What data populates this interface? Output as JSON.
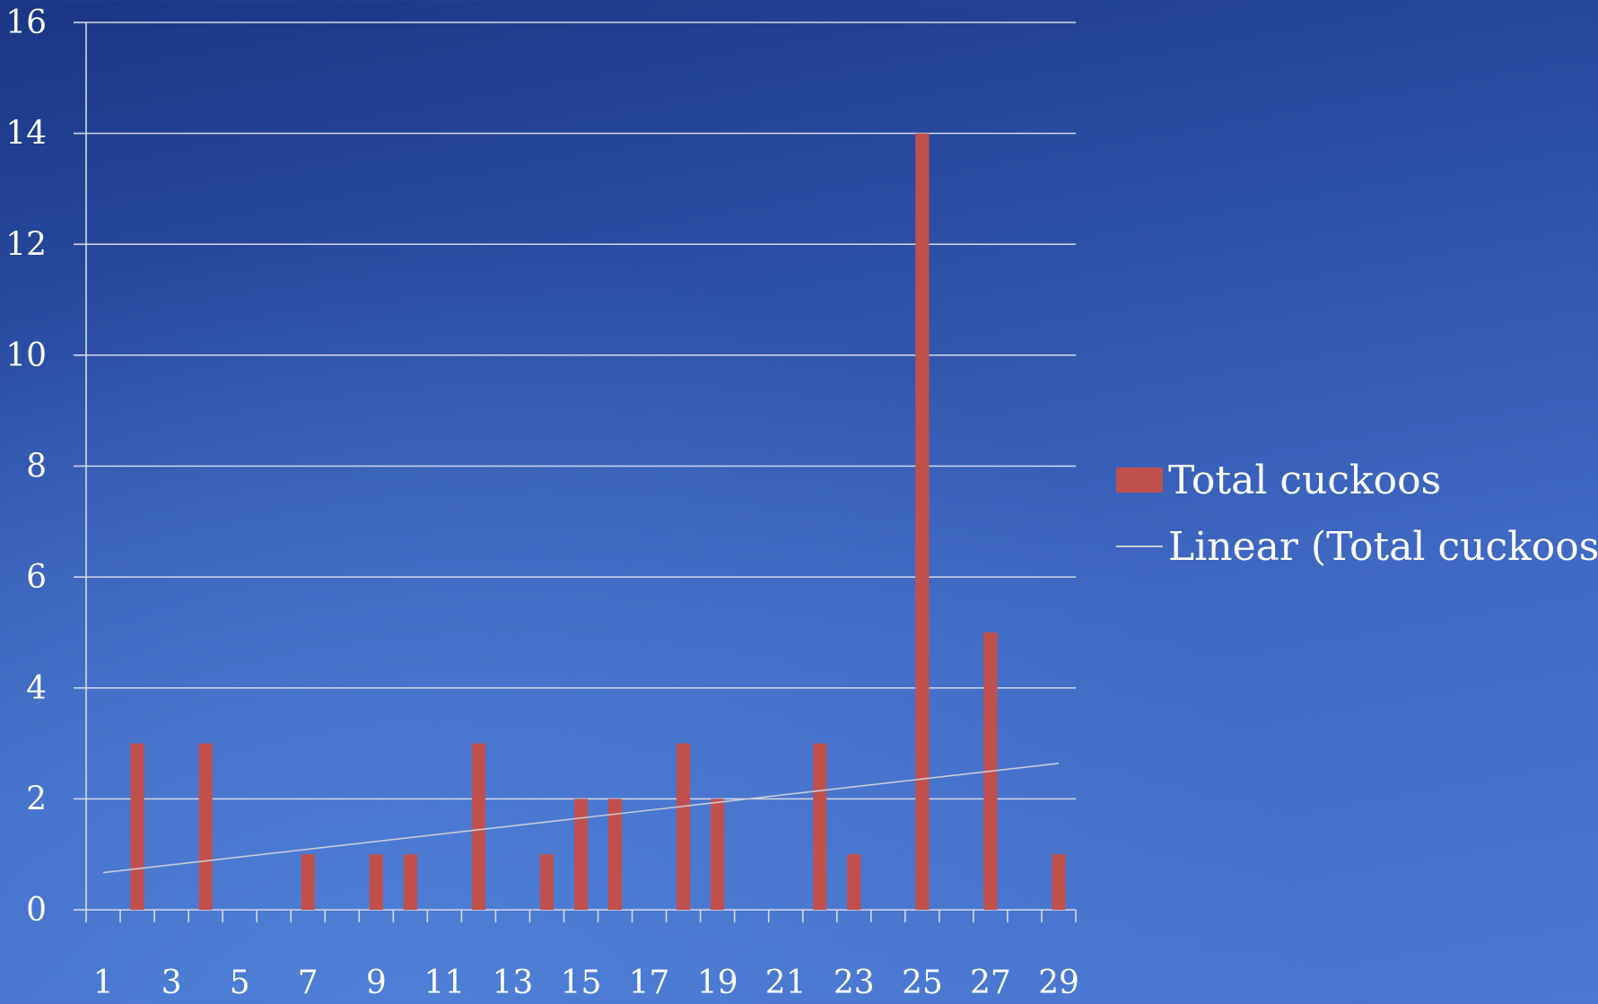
{
  "chart_data": {
    "type": "bar",
    "categories": [
      1,
      2,
      3,
      4,
      5,
      6,
      7,
      8,
      9,
      10,
      11,
      12,
      13,
      14,
      15,
      16,
      17,
      18,
      19,
      20,
      21,
      22,
      23,
      24,
      25,
      26,
      27,
      28,
      29
    ],
    "series": [
      {
        "name": "Total cuckoos",
        "values": [
          0,
          3,
          0,
          3,
          0,
          0,
          1,
          0,
          1,
          1,
          0,
          3,
          0,
          1,
          2,
          2,
          0,
          3,
          2,
          0,
          0,
          3,
          1,
          0,
          14,
          0,
          5,
          0,
          1
        ],
        "color": "#c0504d"
      }
    ],
    "trendline": {
      "name": "Linear (Total cuckoos)",
      "type": "linear",
      "start": [
        1,
        0.67
      ],
      "end": [
        29,
        2.64
      ],
      "color": "#c8ccd8"
    },
    "x_tick_labels": [
      "1",
      "3",
      "5",
      "7",
      "9",
      "11",
      "13",
      "15",
      "17",
      "19",
      "21",
      "23",
      "25",
      "27",
      "29"
    ],
    "y_ticks": [
      0,
      2,
      4,
      6,
      8,
      10,
      12,
      14,
      16
    ],
    "ylim": [
      0,
      16
    ],
    "grid": true,
    "legend_position": "right",
    "title": "",
    "xlabel": "",
    "ylabel": ""
  }
}
